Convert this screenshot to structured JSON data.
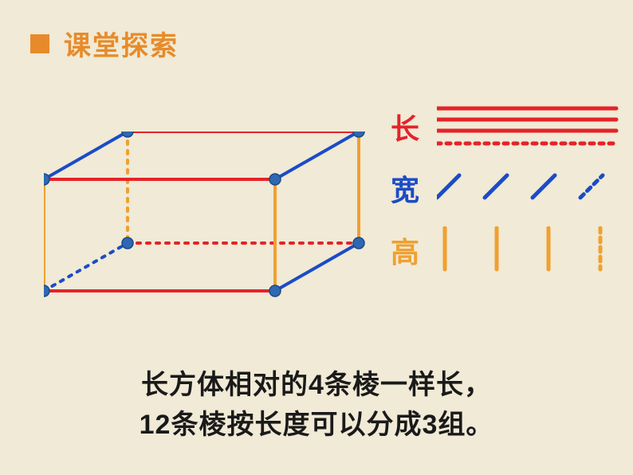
{
  "header": {
    "square_color": "#E78B2A",
    "title": "课堂探索",
    "title_color": "#E78B2A"
  },
  "colors": {
    "length": "#E52329",
    "width": "#1B4BC7",
    "height": "#F0A030",
    "vertex": "#2E68B3",
    "vertex_border": "#1E4A84",
    "text": "#1a1a1a"
  },
  "cuboid": {
    "back": {
      "tl": [
        105,
        0
      ],
      "tr": [
        395,
        0
      ],
      "bl": [
        105,
        140
      ],
      "br": [
        395,
        140
      ]
    },
    "front": {
      "tl": [
        0,
        60
      ],
      "tr": [
        290,
        60
      ],
      "bl": [
        0,
        200
      ],
      "br": [
        290,
        200
      ]
    },
    "vertex_r": 7,
    "line_width": 4,
    "dash": "4 8"
  },
  "legend": {
    "length": {
      "label": "长",
      "color_key": "length"
    },
    "width": {
      "label": "宽",
      "color_key": "width"
    },
    "height": {
      "label": "高",
      "color_key": "height"
    },
    "line_width": 5,
    "dash": "6 6"
  },
  "caption": {
    "line1": "长方体相对的4条棱一样长，",
    "line2": "12条棱按长度可以分成3组。"
  }
}
